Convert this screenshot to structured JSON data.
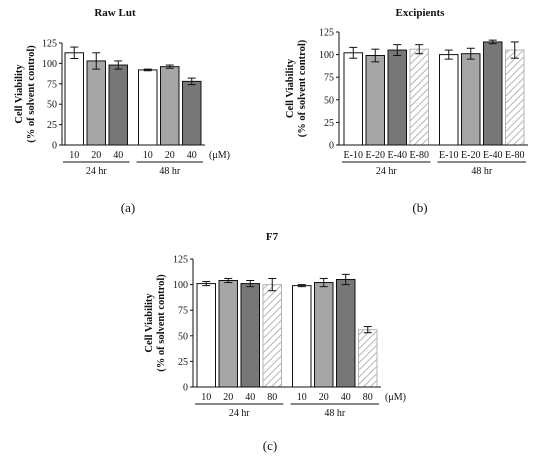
{
  "charts": [
    {
      "id": "a",
      "title": "Raw Lut",
      "ylabel_line1": "Cell Viability",
      "ylabel_line2": "(% of solvent control)",
      "unit_label": "(μM)",
      "caption": "(a)",
      "y_ticks": [
        "0",
        "25",
        "50",
        "75",
        "100",
        "125"
      ],
      "groups": [
        {
          "label": "24 hr",
          "categories": [
            "10",
            "20",
            "40"
          ]
        },
        {
          "label": "48 hr",
          "categories": [
            "10",
            "20",
            "40"
          ]
        }
      ]
    },
    {
      "id": "b",
      "title": "Excipients",
      "ylabel_line1": "Cell Viability",
      "ylabel_line2": "(% of solvent control)",
      "unit_label": "",
      "caption": "(b)",
      "y_ticks": [
        "0",
        "25",
        "50",
        "75",
        "100",
        "125"
      ],
      "groups": [
        {
          "label": "24 hr",
          "categories": [
            "E-10",
            "E-20",
            "E-40",
            "E-80"
          ]
        },
        {
          "label": "48 hr",
          "categories": [
            "E-10",
            "E-20",
            "E-40",
            "E-80"
          ]
        }
      ]
    },
    {
      "id": "c",
      "title": "F7",
      "ylabel_line1": "Cell Viability",
      "ylabel_line2": "(% of solvent control)",
      "unit_label": "(μM)",
      "caption": "(c)",
      "y_ticks": [
        "0",
        "25",
        "50",
        "75",
        "100",
        "125"
      ],
      "groups": [
        {
          "label": "24 hr",
          "categories": [
            "10",
            "20",
            "40",
            "80"
          ]
        },
        {
          "label": "48 hr",
          "categories": [
            "10",
            "20",
            "40",
            "80"
          ]
        }
      ]
    }
  ],
  "chart_data": [
    {
      "type": "bar",
      "title": "Raw Lut",
      "ylabel": "Cell Viability (% of solvent control)",
      "ylim": [
        0,
        125
      ],
      "styles": [
        "white",
        "lightgray",
        "darkgray"
      ],
      "values": [
        [
          113,
          103,
          98
        ],
        [
          92,
          96,
          78
        ]
      ],
      "errors": [
        [
          7,
          10,
          5
        ],
        [
          1,
          2,
          4
        ]
      ],
      "colors": {
        "white": "#ffffff",
        "lightgray": "#a6a6a6",
        "darkgray": "#777777",
        "hatch": "#b5b5b5"
      }
    },
    {
      "type": "bar",
      "title": "Excipients",
      "ylabel": "Cell Viability (% of solvent control)",
      "ylim": [
        0,
        125
      ],
      "styles": [
        "white",
        "lightgray",
        "darkgray",
        "hatch"
      ],
      "values": [
        [
          102,
          99,
          105,
          106
        ],
        [
          100,
          101,
          114,
          105
        ]
      ],
      "errors": [
        [
          6,
          7,
          6,
          5
        ],
        [
          5,
          6,
          2,
          9
        ]
      ],
      "colors": {
        "white": "#ffffff",
        "lightgray": "#a6a6a6",
        "darkgray": "#777777",
        "hatch": "#b5b5b5"
      }
    },
    {
      "type": "bar",
      "title": "F7",
      "ylabel": "Cell Viability (% of solvent control)",
      "ylim": [
        0,
        125
      ],
      "styles": [
        "white",
        "lightgray",
        "darkgray",
        "hatch"
      ],
      "values": [
        [
          101,
          104,
          101,
          100
        ],
        [
          99,
          102,
          105,
          56
        ]
      ],
      "errors": [
        [
          2,
          2,
          3,
          6
        ],
        [
          1,
          4,
          5,
          3
        ]
      ],
      "colors": {
        "white": "#ffffff",
        "lightgray": "#a6a6a6",
        "darkgray": "#777777",
        "hatch": "#b5b5b5"
      }
    }
  ]
}
